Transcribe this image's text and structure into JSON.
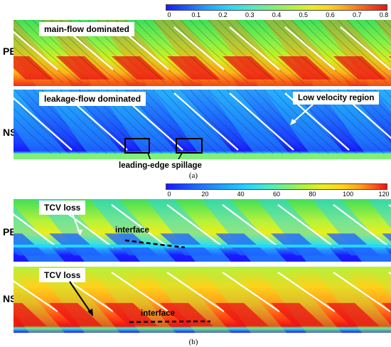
{
  "panel_a": {
    "colorbar_ticks": [
      "0",
      "0.1",
      "0.2",
      "0.3",
      "0.4",
      "0.5",
      "0.6",
      "0.7",
      "0.8"
    ],
    "row_pe": {
      "side_label": "PE",
      "label": "main-flow dominated"
    },
    "row_ns": {
      "side_label": "NS",
      "label": "leakage-flow dominated",
      "annotation_low_velocity": "Low velocity region",
      "annotation_spillage": "leading-edge spillage"
    },
    "caption": "(a)"
  },
  "panel_b": {
    "colorbar_ticks": [
      "0",
      "20",
      "40",
      "60",
      "80",
      "100",
      "120"
    ],
    "row_pe": {
      "side_label": "PE",
      "label": "TCV loss",
      "annotation_interface": "interface"
    },
    "row_ns": {
      "side_label": "NS",
      "label": "TCV loss",
      "annotation_interface": "interface"
    },
    "caption": "(b)"
  },
  "colors": {
    "low": "#1a1aff",
    "mid_low": "#26d5ff",
    "mid": "#7ff07a",
    "mid_high": "#e9ef1d",
    "high": "#e91414"
  }
}
